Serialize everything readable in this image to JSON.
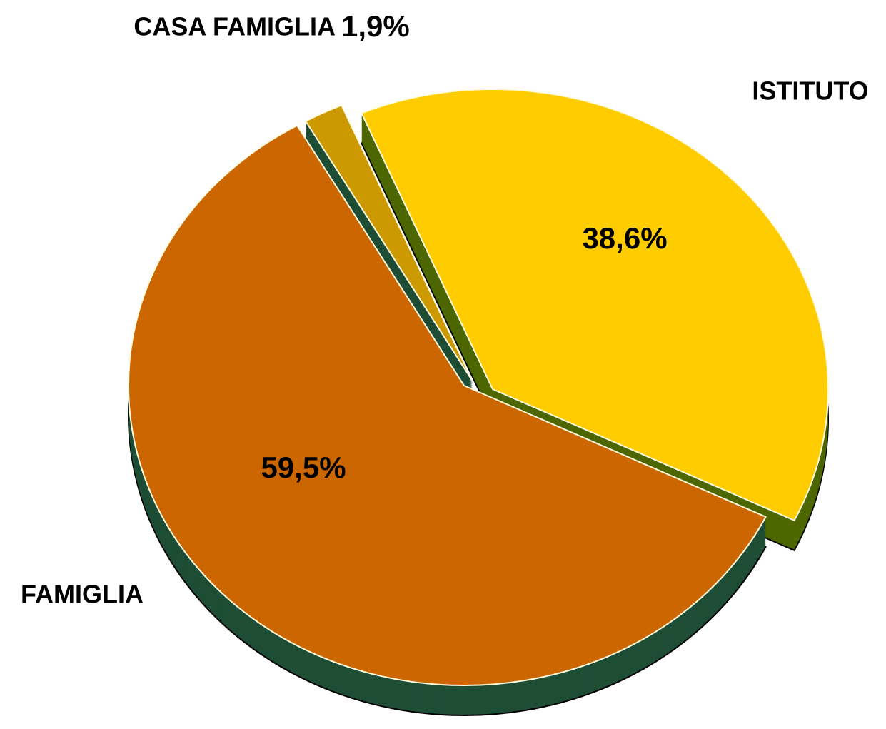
{
  "chart_data": {
    "type": "pie",
    "categories": [
      "ISTITUTO",
      "FAMIGLIA",
      "CASA FAMIGLIA"
    ],
    "values": [
      38.6,
      59.5,
      1.9
    ],
    "value_labels": [
      "38,6%",
      "59,5%",
      "1,9%"
    ],
    "colors": [
      "#ffcc00",
      "#cc6600",
      "#cc9900"
    ],
    "side_colors": [
      "#4d6600",
      "#1e4d35",
      "#1e4d35"
    ]
  }
}
